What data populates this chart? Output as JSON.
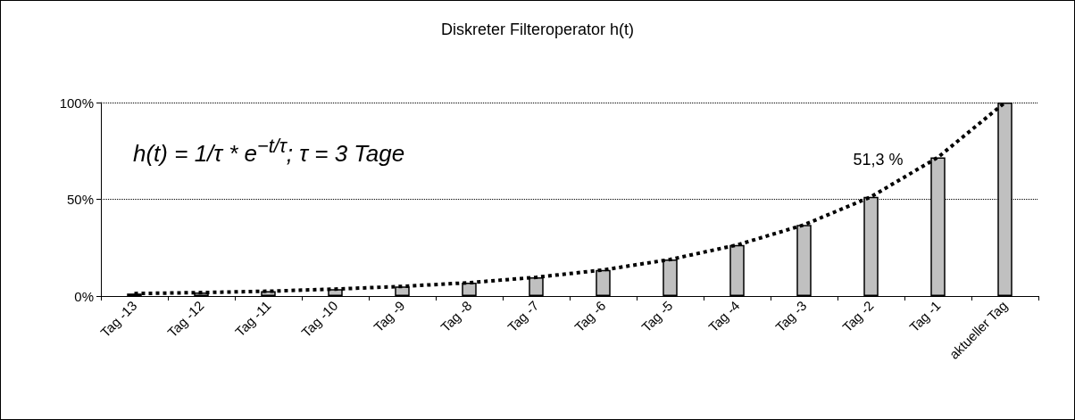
{
  "chart_data": {
    "type": "bar",
    "title": "Diskreter Filteroperator h(t)",
    "categories": [
      "Tag -13",
      "Tag -12",
      "Tag -11",
      "Tag -10",
      "Tag -9",
      "Tag -8",
      "Tag -7",
      "Tag -6",
      "Tag -5",
      "Tag -4",
      "Tag -3",
      "Tag -2",
      "Tag -1",
      "aktueller Tag"
    ],
    "series": [
      {
        "color": "#c0c0c0",
        "values": [
          1.3,
          1.8,
          2.5,
          3.6,
          5.0,
          6.9,
          9.7,
          13.5,
          18.9,
          26.4,
          36.8,
          51.3,
          71.7,
          100
        ]
      },
      {
        "type": "line",
        "color": "#000000",
        "line_style": "dotted",
        "values": [
          1.3,
          1.8,
          2.5,
          3.6,
          5.0,
          6.9,
          9.7,
          13.5,
          18.9,
          26.4,
          36.8,
          51.3,
          71.7,
          100
        ]
      }
    ],
    "ylim": [
      0,
      100
    ],
    "yticks": [
      {
        "value": 0,
        "label": "0%"
      },
      {
        "value": 50,
        "label": "50%"
      },
      {
        "value": 100,
        "label": "100%"
      }
    ],
    "grid": "y",
    "annotations": [
      "h(t) = 1/τ * e$^{−t/τ}$; τ = 3 Tage",
      {
        "text": "51,3 %",
        "x": "Tag -2",
        "y": 51.3
      }
    ]
  }
}
